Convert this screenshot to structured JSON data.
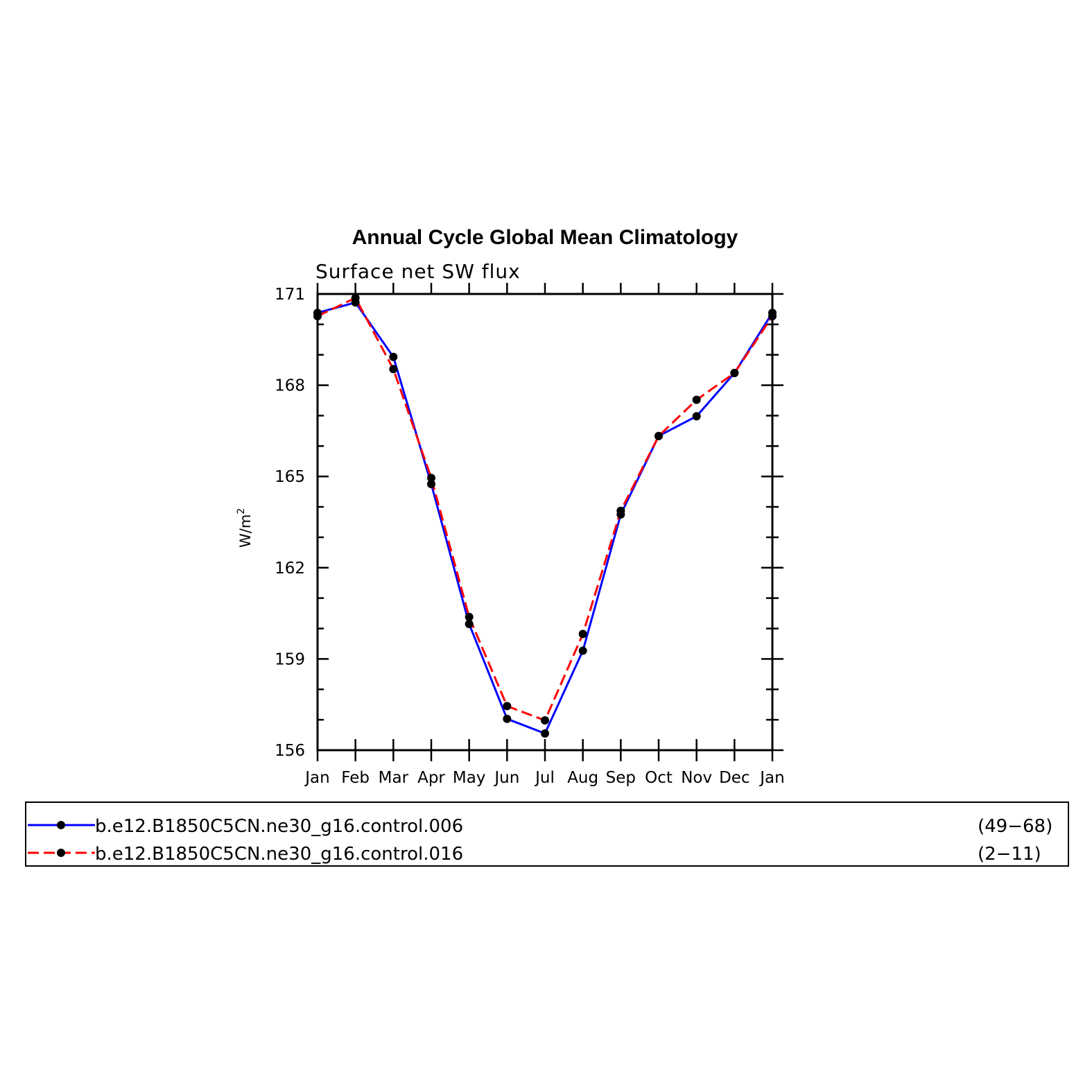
{
  "chart_data": {
    "type": "line",
    "title": "Annual Cycle Global Mean Climatology",
    "subtitle": "Surface net SW flux",
    "ylabel": "W/m",
    "ylabel_sup": "2",
    "xlabel": "",
    "categories": [
      "Jan",
      "Feb",
      "Mar",
      "Apr",
      "May",
      "Jun",
      "Jul",
      "Aug",
      "Sep",
      "Oct",
      "Nov",
      "Dec",
      "Jan"
    ],
    "ylim": [
      156,
      171
    ],
    "yticks": [
      "156",
      "159",
      "162",
      "165",
      "168",
      "171"
    ],
    "grid": false,
    "legend_position": "bottom",
    "series": [
      {
        "name": "b.e12.B1850C5CN.ne30_g16.control.006",
        "years": "(49−68)",
        "color": "#0000ff",
        "dash": "solid",
        "values": [
          170.38,
          170.72,
          168.93,
          164.75,
          160.15,
          157.03,
          156.55,
          159.27,
          163.75,
          166.33,
          166.98,
          168.4,
          170.38
        ]
      },
      {
        "name": "b.e12.B1850C5CN.ne30_g16.control.016",
        "years": "(2−11)",
        "color": "#ff0000",
        "dash": "dashed",
        "values": [
          170.27,
          170.87,
          168.53,
          164.95,
          160.38,
          157.45,
          156.98,
          159.82,
          163.87,
          166.33,
          167.52,
          168.4,
          170.27
        ]
      }
    ]
  }
}
